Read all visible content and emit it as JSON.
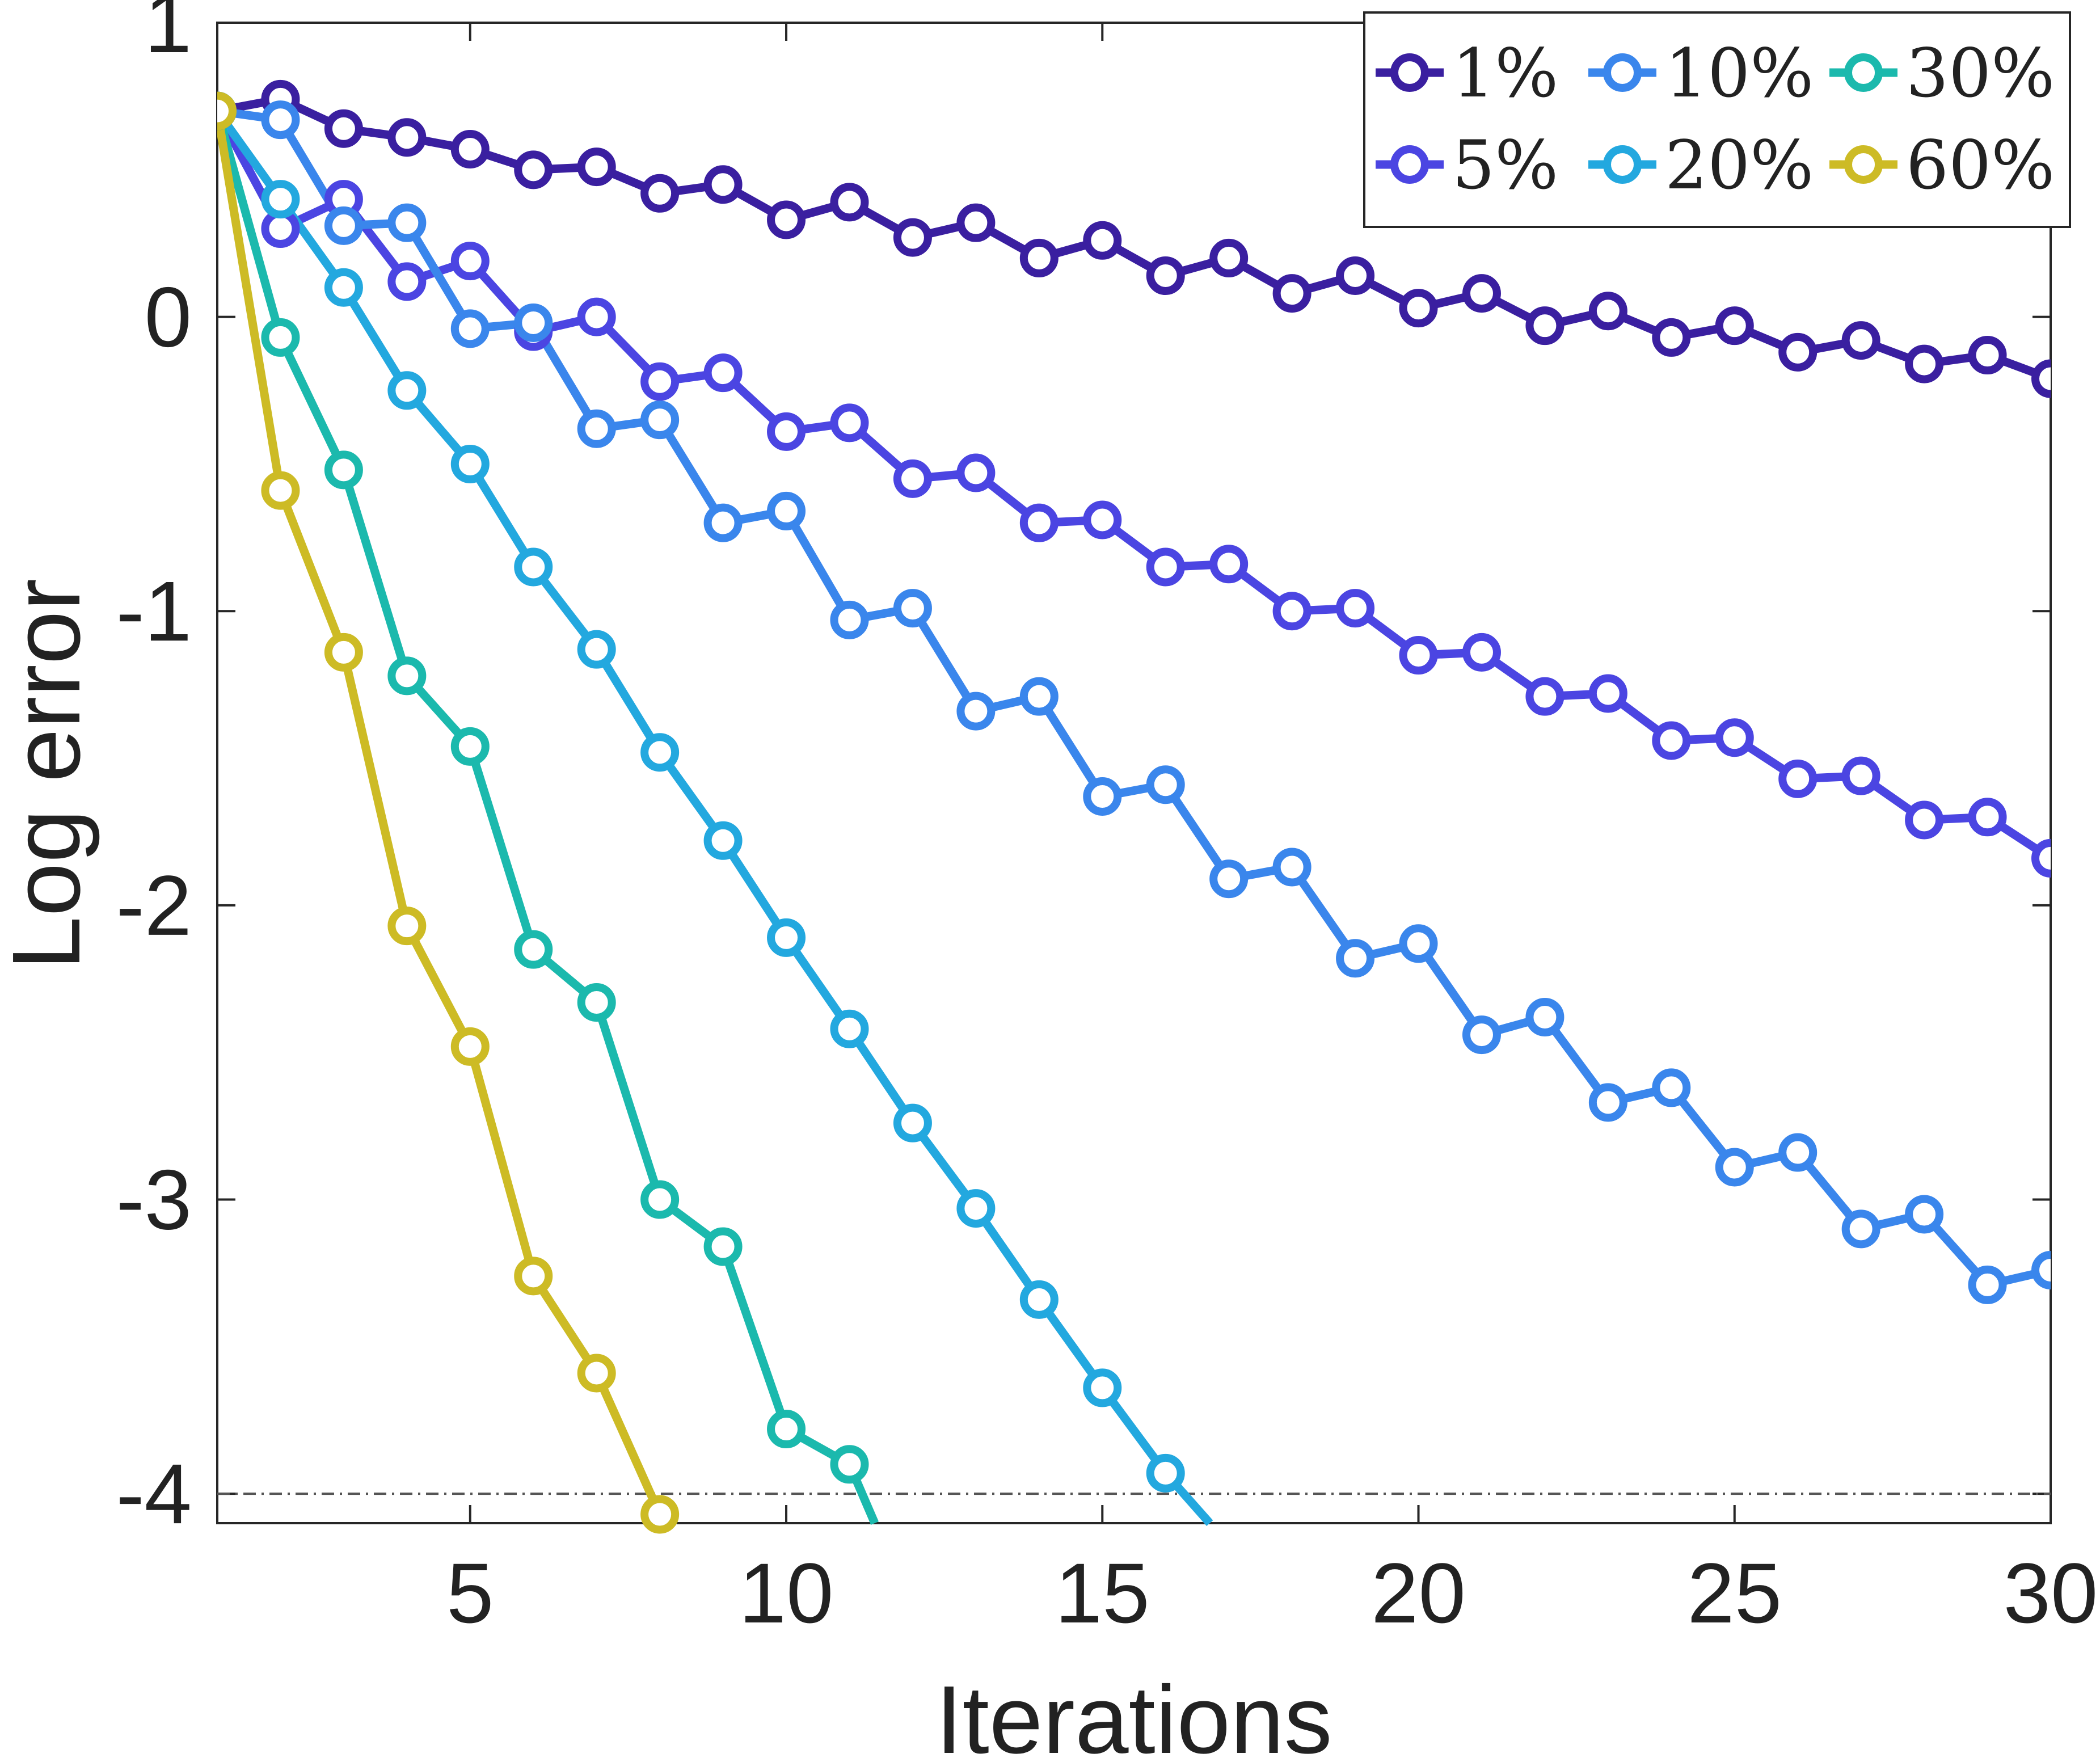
{
  "chart_data": {
    "type": "line",
    "title": "",
    "xlabel": "Iterations",
    "ylabel": "Log error",
    "xlim": [
      1,
      30
    ],
    "ylim": [
      -4.1,
      1.0
    ],
    "xticks": [
      5,
      10,
      15,
      20,
      25,
      30
    ],
    "yticks": [
      1,
      0,
      -1,
      -2,
      -3,
      -4
    ],
    "xtick_labels": [
      "5",
      "10",
      "15",
      "20",
      "25",
      "30"
    ],
    "ytick_labels": [
      "1",
      "0",
      "-1",
      "-2",
      "-3",
      "-4"
    ],
    "threshold": -4.0,
    "grid": false,
    "legend_position": "top-right",
    "series": [
      {
        "name": "1%",
        "color": "#3a1fa0",
        "x": [
          1,
          2,
          3,
          4,
          5,
          6,
          7,
          8,
          9,
          10,
          11,
          12,
          13,
          14,
          15,
          16,
          17,
          18,
          19,
          20,
          21,
          22,
          23,
          24,
          25,
          26,
          27,
          28,
          29,
          30
        ],
        "y": [
          0.7,
          0.74,
          0.64,
          0.61,
          0.57,
          0.5,
          0.51,
          0.42,
          0.45,
          0.33,
          0.39,
          0.27,
          0.32,
          0.2,
          0.26,
          0.14,
          0.2,
          0.08,
          0.14,
          0.03,
          0.08,
          -0.03,
          0.02,
          -0.07,
          -0.03,
          -0.12,
          -0.08,
          -0.16,
          -0.13,
          -0.21
        ]
      },
      {
        "name": "5%",
        "color": "#4b45e2",
        "x": [
          1,
          2,
          3,
          4,
          5,
          6,
          7,
          8,
          9,
          10,
          11,
          12,
          13,
          14,
          15,
          16,
          17,
          18,
          19,
          20,
          21,
          22,
          23,
          24,
          25,
          26,
          27,
          28,
          29,
          30
        ],
        "y": [
          0.7,
          0.3,
          0.4,
          0.12,
          0.19,
          -0.05,
          0.0,
          -0.22,
          -0.19,
          -0.39,
          -0.36,
          -0.55,
          -0.53,
          -0.7,
          -0.69,
          -0.85,
          -0.84,
          -1.0,
          -0.99,
          -1.15,
          -1.14,
          -1.29,
          -1.28,
          -1.44,
          -1.43,
          -1.57,
          -1.56,
          -1.71,
          -1.7,
          -1.84
        ]
      },
      {
        "name": "10%",
        "color": "#3a86ec",
        "x": [
          1,
          2,
          3,
          4,
          5,
          6,
          7,
          8,
          9,
          10,
          11,
          12,
          13,
          14,
          15,
          16,
          17,
          18,
          19,
          20,
          21,
          22,
          23,
          24,
          25,
          26,
          27,
          28,
          29,
          30
        ],
        "y": [
          0.7,
          0.67,
          0.31,
          0.32,
          -0.04,
          -0.02,
          -0.38,
          -0.35,
          -0.7,
          -0.66,
          -1.03,
          -0.99,
          -1.34,
          -1.29,
          -1.63,
          -1.59,
          -1.91,
          -1.87,
          -2.18,
          -2.13,
          -2.44,
          -2.38,
          -2.67,
          -2.62,
          -2.89,
          -2.84,
          -3.1,
          -3.05,
          -3.29,
          -3.24
        ]
      },
      {
        "name": "20%",
        "color": "#23a8df",
        "x": [
          1,
          2,
          3,
          4,
          5,
          6,
          7,
          8,
          9,
          10,
          11,
          12,
          13,
          14,
          15,
          16,
          16.7
        ],
        "y": [
          0.7,
          0.4,
          0.1,
          -0.25,
          -0.5,
          -0.85,
          -1.13,
          -1.48,
          -1.78,
          -2.11,
          -2.42,
          -2.74,
          -3.03,
          -3.34,
          -3.64,
          -3.93,
          -4.1
        ]
      },
      {
        "name": "30%",
        "color": "#1bb9ad",
        "x": [
          1,
          2,
          3,
          4,
          5,
          6,
          7,
          8,
          9,
          10,
          11,
          11.4
        ],
        "y": [
          0.7,
          -0.07,
          -0.52,
          -1.22,
          -1.46,
          -2.15,
          -2.33,
          -3.0,
          -3.16,
          -3.78,
          -3.9,
          -4.1
        ]
      },
      {
        "name": "60%",
        "color": "#cdbb25",
        "x": [
          1,
          2,
          3,
          4,
          5,
          6,
          7,
          8
        ],
        "y": [
          0.7,
          -0.59,
          -1.14,
          -2.07,
          -2.48,
          -3.26,
          -3.59,
          -4.07
        ]
      }
    ]
  }
}
